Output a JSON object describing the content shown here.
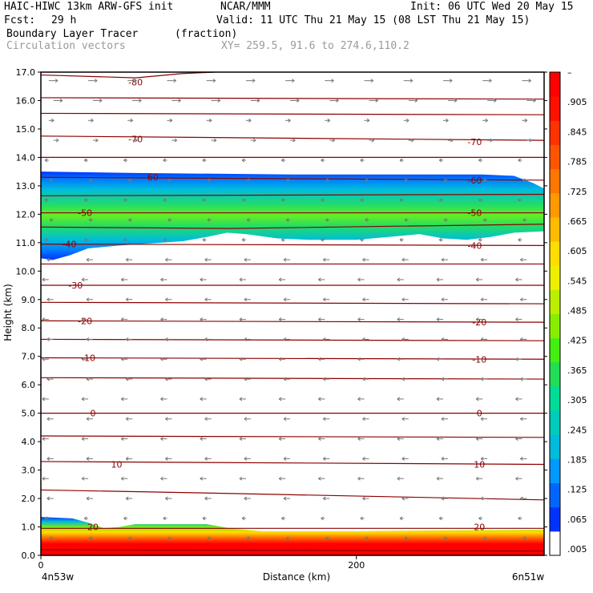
{
  "header": {
    "model": "HAIC-HIWC 13km ARW-GFS init",
    "org": "NCAR/MMM",
    "init": "Init: 06 UTC Wed 20 May 15",
    "fcst_label": "Fcst:",
    "fcst_value": "29 h",
    "valid": "Valid: 11 UTC Thu 21 May 15 (08 LST Thu 21 May 15)",
    "field": "Boundary Layer Tracer",
    "field_units": "(fraction)",
    "vectors": "Circulation vectors",
    "xy": "XY= 259.5, 91.6 to 274.6,110.2"
  },
  "chart_data": {
    "type": "heatmap",
    "ylabel": "Height (km)",
    "xlabel": "Distance (km)",
    "ylim": [
      0,
      17
    ],
    "xlim": [
      0,
      319
    ],
    "y_ticks": [
      "0.0",
      "1.0",
      "2.0",
      "3.0",
      "4.0",
      "5.0",
      "6.0",
      "7.0",
      "8.0",
      "9.0",
      "10.0",
      "11.0",
      "12.0",
      "13.0",
      "14.0",
      "15.0",
      "16.0",
      "17.0"
    ],
    "x_ticks": [
      0,
      200
    ],
    "x_tick_labels": [
      "0",
      "200"
    ],
    "x_end_labels": {
      "left": "4n53w",
      "right": "6n51w"
    },
    "colorbar": {
      "labels": [
        ".005",
        ".065",
        ".125",
        ".185",
        ".245",
        ".305",
        ".365",
        ".425",
        ".485",
        ".545",
        ".605",
        ".665",
        ".725",
        ".785",
        ".845",
        ".905",
        "–"
      ],
      "colors": [
        "#ffffff",
        "#0033ff",
        "#0066ff",
        "#0099ff",
        "#00bbdd",
        "#00ccbb",
        "#00dd99",
        "#22dd55",
        "#44ee11",
        "#88ee00",
        "#bbee00",
        "#eeee00",
        "#ffdd00",
        "#ffbb00",
        "#ff9900",
        "#ff7700",
        "#ff5500",
        "#ff3300",
        "#ff1100",
        "#ff0000"
      ]
    },
    "temperature_contours": {
      "color": "#8b0000",
      "levels": [
        -80,
        -70,
        -60,
        -50,
        -40,
        -30,
        -20,
        -10,
        0,
        10,
        20
      ],
      "labels": [
        "-80",
        "-70",
        "-60",
        "-50",
        "-40",
        "-30",
        "-20",
        "-10",
        "0",
        "10",
        "20"
      ]
    },
    "vector_color": "#777777"
  }
}
